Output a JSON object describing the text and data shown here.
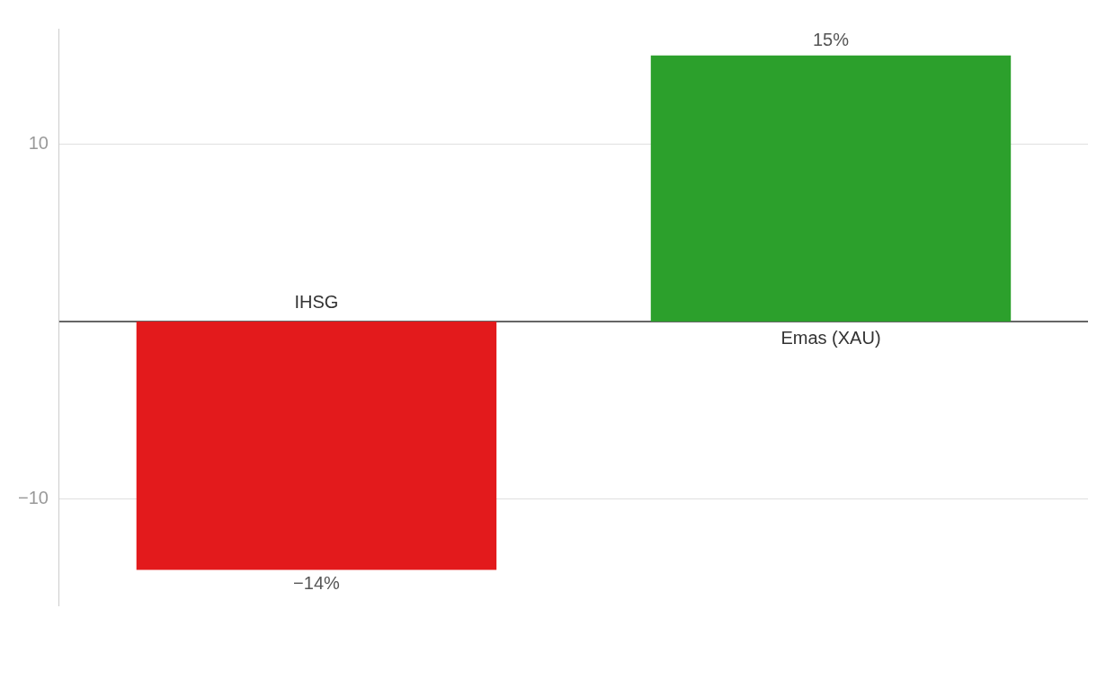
{
  "chart_data": {
    "type": "bar",
    "categories": [
      "IHSG",
      "Emas (XAU)"
    ],
    "values": [
      -14,
      15
    ],
    "colors": [
      "#e31a1c",
      "#2ca02c"
    ],
    "value_labels": [
      "−14%",
      "15%"
    ],
    "ylim": [
      -16,
      16.5
    ],
    "yticks": [
      {
        "value": -10,
        "label": "−10"
      },
      10
    ],
    "grid": "y",
    "legend": false,
    "ref_lines": [
      {
        "axis": "y",
        "value": 0,
        "color": "#333333"
      }
    ]
  }
}
